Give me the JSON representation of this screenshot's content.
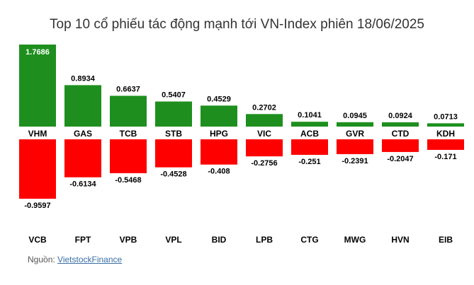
{
  "chart_data": {
    "type": "bar",
    "title": "Top 10 cổ phiếu tác động mạnh tới VN-Index phiên 18/06/2025",
    "xlabel": "",
    "ylabel": "",
    "grid": false,
    "legend": "none",
    "positive": {
      "categories": [
        "VHM",
        "GAS",
        "TCB",
        "STB",
        "HPG",
        "VIC",
        "ACB",
        "GVR",
        "CTD",
        "KDH"
      ],
      "values": [
        1.7686,
        0.8934,
        0.6637,
        0.5407,
        0.4529,
        0.2702,
        0.1041,
        0.0945,
        0.0924,
        0.0713
      ],
      "labels": [
        "1.7686",
        "0.8934",
        "0.6637",
        "0.5407",
        "0.4529",
        "0.2702",
        "0.1041",
        "0.0945",
        "0.0924",
        "0.0713"
      ],
      "color": "#1e8f1e"
    },
    "negative": {
      "categories": [
        "VCB",
        "FPT",
        "VPB",
        "VPL",
        "BID",
        "LPB",
        "CTG",
        "MWG",
        "HVN",
        "EIB"
      ],
      "values": [
        -0.9597,
        -0.6134,
        -0.5468,
        -0.4528,
        -0.408,
        -0.2756,
        -0.251,
        -0.2391,
        -0.2047,
        -0.171
      ],
      "labels": [
        "-0.9597",
        "-0.6134",
        "-0.5468",
        "-0.4528",
        "-0.408",
        "-0.2756",
        "-0.251",
        "-0.2391",
        "-0.2047",
        "-0.171"
      ],
      "color": "#ff0000"
    }
  },
  "source": {
    "prefix": "Nguồn: ",
    "link_text": "VietstockFinance"
  }
}
